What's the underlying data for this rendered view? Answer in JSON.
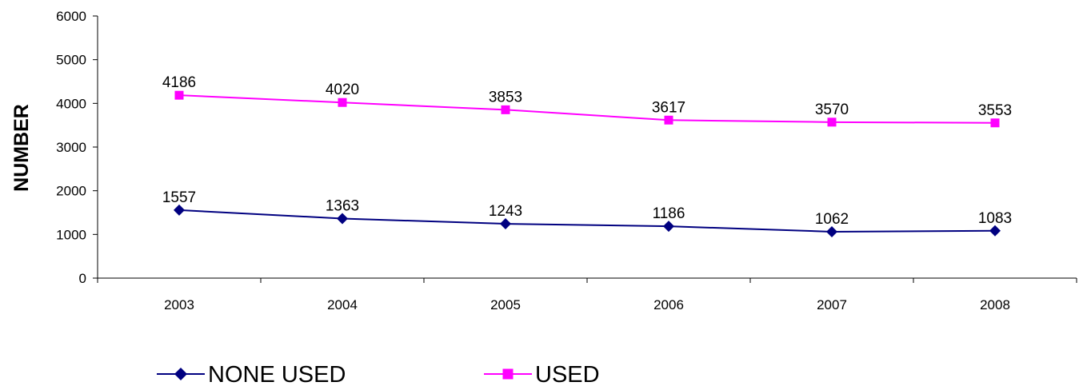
{
  "chart_data": {
    "type": "line",
    "title": "",
    "xlabel": "",
    "ylabel": "NUMBER",
    "categories": [
      "2003",
      "2004",
      "2005",
      "2006",
      "2007",
      "2008"
    ],
    "ylim": [
      0,
      6000
    ],
    "yticks": [
      0,
      1000,
      2000,
      3000,
      4000,
      5000,
      6000
    ],
    "grid": false,
    "legend_position": "bottom",
    "series": [
      {
        "name": "NONE USED",
        "values": [
          1557,
          1363,
          1243,
          1186,
          1062,
          1083
        ],
        "color": "#000080",
        "marker": "diamond"
      },
      {
        "name": "USED",
        "values": [
          4186,
          4020,
          3853,
          3617,
          3570,
          3553
        ],
        "color": "#FF00FF",
        "marker": "square"
      }
    ]
  }
}
